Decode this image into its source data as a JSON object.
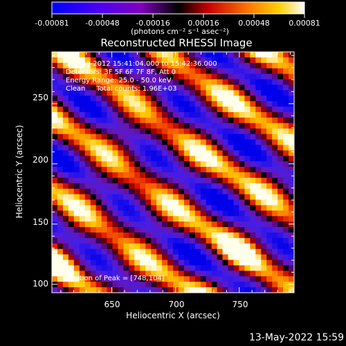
{
  "colorbar": {
    "tick_labels": [
      "-0.00081",
      "-0.00048",
      "-0.00016",
      "0.00016",
      "0.00048",
      "0.00081"
    ],
    "unit_label": "(photons cm⁻² s⁻¹ asec⁻²)",
    "range": [
      -0.00081,
      0.00081
    ],
    "colors": [
      "#0000ff",
      "#7a00e0",
      "#000000",
      "#c80000",
      "#ff7800",
      "#ffffff"
    ]
  },
  "chart_data": {
    "type": "heatmap",
    "title": "Reconstructed RHESSI Image",
    "xlabel": "Heliocentric X (arcsec)",
    "ylabel": "Heliocentric Y (arcsec)",
    "xlim": [
      603,
      793
    ],
    "ylim": [
      93,
      293
    ],
    "x_ticks": [
      650,
      700,
      750
    ],
    "y_ticks": [
      100,
      150,
      200,
      250
    ],
    "annotations": [
      "16-Aug-2012 15:41:04.000 to 15:42:36.000",
      "Detectors: 3F 5F 6F 7F 8F, Att 0",
      "Energy Range: 25.0 - 50.0 keV",
      "Clean     Total counts: 1.96E+03"
    ],
    "peak_label": "Position of Peak = [748,104]",
    "peak_position": [
      748,
      104
    ],
    "pattern": "diagonal alternating positive (red-yellow-white) and negative (blue-purple) stripes running from upper-left to lower-right; brightest at lower-left and lower-right"
  },
  "footer": {
    "date": "13-May-2022 15:59"
  }
}
